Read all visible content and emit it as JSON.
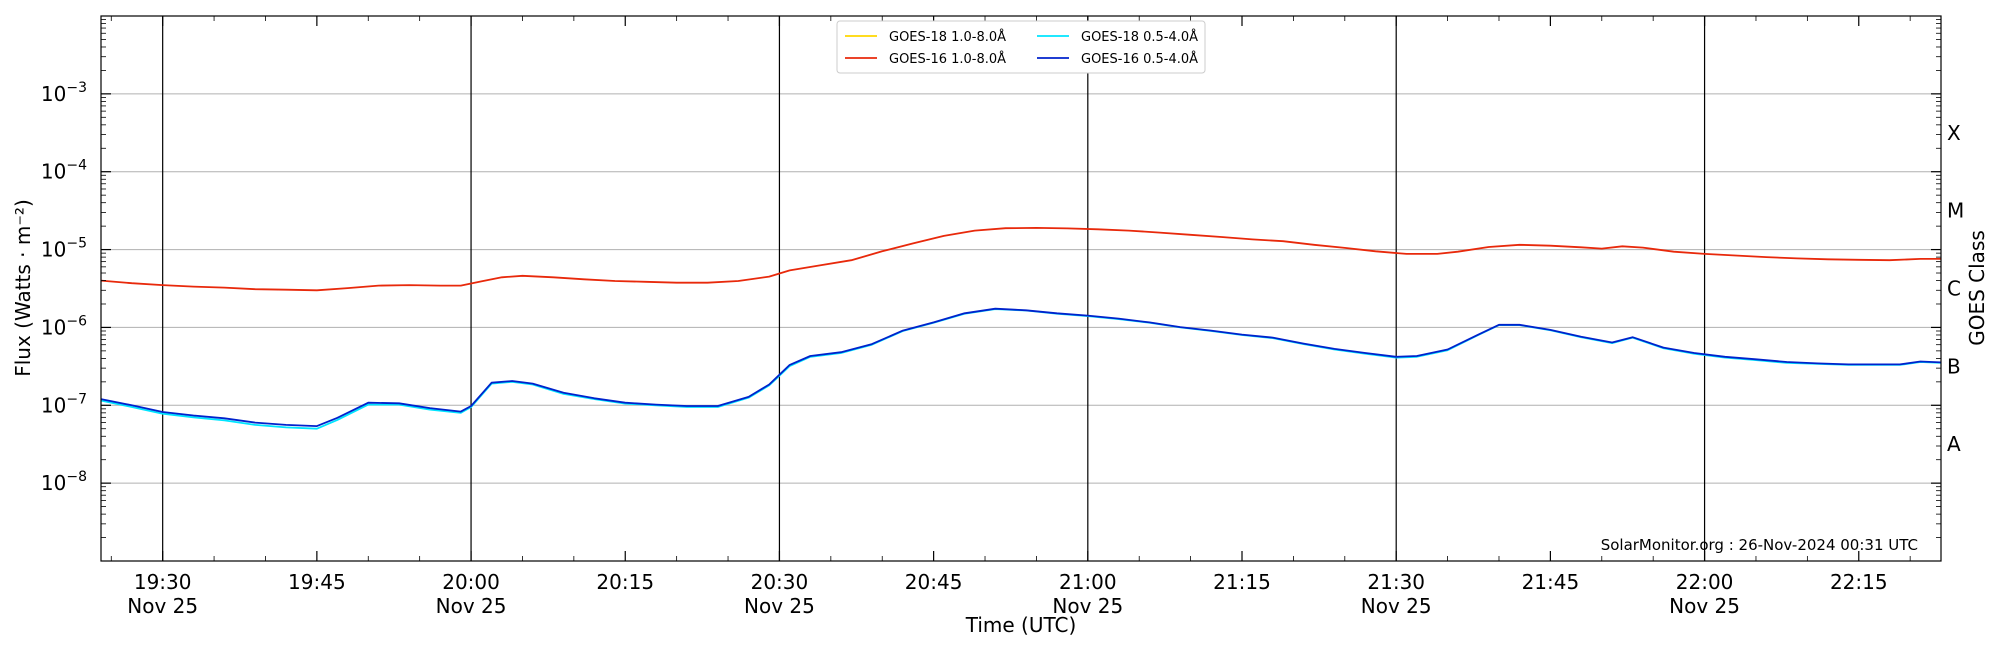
{
  "chart_data": {
    "type": "line",
    "title": "",
    "xlabel": "Time (UTC)",
    "ylabel": "Flux (Watts · m⁻²)",
    "y2label": "GOES Class",
    "yscale": "log",
    "ylim": [
      1e-09,
      0.01
    ],
    "xlim": [
      "2024-11-25T19:24",
      "2024-11-25T22:23"
    ],
    "grid": "horizontal",
    "legend_position": "top-center",
    "watermark": "SolarMonitor.org : 26-Nov-2024 00:31 UTC",
    "vlines": [
      "19:30",
      "20:00",
      "20:30",
      "21:00",
      "21:30",
      "22:00"
    ],
    "x_ticks": [
      {
        "t": "19:30",
        "line1": "19:30",
        "line2": "Nov 25"
      },
      {
        "t": "19:45",
        "line1": "19:45",
        "line2": ""
      },
      {
        "t": "20:00",
        "line1": "20:00",
        "line2": "Nov 25"
      },
      {
        "t": "20:15",
        "line1": "20:15",
        "line2": ""
      },
      {
        "t": "20:30",
        "line1": "20:30",
        "line2": "Nov 25"
      },
      {
        "t": "20:45",
        "line1": "20:45",
        "line2": ""
      },
      {
        "t": "21:00",
        "line1": "21:00",
        "line2": "Nov 25"
      },
      {
        "t": "21:15",
        "line1": "21:15",
        "line2": ""
      },
      {
        "t": "21:30",
        "line1": "21:30",
        "line2": "Nov 25"
      },
      {
        "t": "21:45",
        "line1": "21:45",
        "line2": ""
      },
      {
        "t": "22:00",
        "line1": "22:00",
        "line2": "Nov 25"
      },
      {
        "t": "22:15",
        "line1": "22:15",
        "line2": ""
      }
    ],
    "y_ticks": [
      {
        "value": 1e-08,
        "base": "10",
        "exp": "−8"
      },
      {
        "value": 1e-07,
        "base": "10",
        "exp": "−7"
      },
      {
        "value": 1e-06,
        "base": "10",
        "exp": "−6"
      },
      {
        "value": 1e-05,
        "base": "10",
        "exp": "−5"
      },
      {
        "value": 0.0001,
        "base": "10",
        "exp": "−4"
      },
      {
        "value": 0.001,
        "base": "10",
        "exp": "−3"
      }
    ],
    "goes_classes": [
      {
        "label": "A",
        "value": 3.16e-08
      },
      {
        "label": "B",
        "value": 3.16e-07
      },
      {
        "label": "C",
        "value": 3.16e-06
      },
      {
        "label": "M",
        "value": 3.16e-05
      },
      {
        "label": "X",
        "value": 0.000316
      }
    ],
    "series": [
      {
        "name": "GOES-18 1.0-8.0Å",
        "color": "#ffd700",
        "points": []
      },
      {
        "name": "GOES-18 0.5-4.0Å",
        "color": "#00e5ff",
        "points": [
          [
            "19:24",
            1.15e-07
          ],
          [
            "19:27",
            9.5e-08
          ],
          [
            "19:30",
            7.8e-08
          ],
          [
            "19:33",
            7e-08
          ],
          [
            "19:36",
            6.4e-08
          ],
          [
            "19:39",
            5.6e-08
          ],
          [
            "19:42",
            5.2e-08
          ],
          [
            "19:45",
            5e-08
          ],
          [
            "19:47",
            6.5e-08
          ],
          [
            "19:50",
            1.02e-07
          ],
          [
            "19:53",
            1.02e-07
          ],
          [
            "19:56",
            8.8e-08
          ],
          [
            "19:59",
            8e-08
          ],
          [
            "20:00",
            9.5e-08
          ],
          [
            "20:02",
            1.9e-07
          ],
          [
            "20:04",
            2e-07
          ],
          [
            "20:06",
            1.85e-07
          ],
          [
            "20:09",
            1.4e-07
          ],
          [
            "20:12",
            1.2e-07
          ],
          [
            "20:15",
            1.05e-07
          ],
          [
            "20:18",
            1e-07
          ],
          [
            "20:21",
            9.5e-08
          ],
          [
            "20:24",
            9.5e-08
          ],
          [
            "20:27",
            1.25e-07
          ],
          [
            "20:29",
            1.8e-07
          ],
          [
            "20:31",
            3.2e-07
          ],
          [
            "20:33",
            4.2e-07
          ],
          [
            "20:36",
            4.7e-07
          ],
          [
            "20:39",
            6e-07
          ],
          [
            "20:42",
            9e-07
          ],
          [
            "20:45",
            1.15e-06
          ],
          [
            "20:48",
            1.5e-06
          ],
          [
            "20:51",
            1.72e-06
          ],
          [
            "20:54",
            1.65e-06
          ],
          [
            "20:57",
            1.5e-06
          ],
          [
            "21:00",
            1.4e-06
          ],
          [
            "21:03",
            1.28e-06
          ],
          [
            "21:06",
            1.15e-06
          ],
          [
            "21:09",
            1e-06
          ],
          [
            "21:12",
            9e-07
          ],
          [
            "21:15",
            8e-07
          ],
          [
            "21:18",
            7.3e-07
          ],
          [
            "21:21",
            6.1e-07
          ],
          [
            "21:24",
            5.2e-07
          ],
          [
            "21:27",
            4.6e-07
          ],
          [
            "21:30",
            4.1e-07
          ],
          [
            "21:32",
            4.2e-07
          ],
          [
            "21:35",
            5.1e-07
          ],
          [
            "21:38",
            8e-07
          ],
          [
            "21:40",
            1.07e-06
          ],
          [
            "21:42",
            1.07e-06
          ],
          [
            "21:45",
            9.2e-07
          ],
          [
            "21:48",
            7.5e-07
          ],
          [
            "21:51",
            6.3e-07
          ],
          [
            "21:53",
            7.4e-07
          ],
          [
            "21:56",
            5.4e-07
          ],
          [
            "21:59",
            4.6e-07
          ],
          [
            "22:02",
            4.1e-07
          ],
          [
            "22:05",
            3.8e-07
          ],
          [
            "22:08",
            3.5e-07
          ],
          [
            "22:11",
            3.4e-07
          ],
          [
            "22:14",
            3.3e-07
          ],
          [
            "22:17",
            3.3e-07
          ],
          [
            "22:19",
            3.3e-07
          ],
          [
            "22:21",
            3.6e-07
          ],
          [
            "22:23",
            3.5e-07
          ]
        ]
      },
      {
        "name": "GOES-16 1.0-8.0Å",
        "color": "#e8290b",
        "points": [
          [
            "19:24",
            4e-06
          ],
          [
            "19:27",
            3.7e-06
          ],
          [
            "19:30",
            3.5e-06
          ],
          [
            "19:33",
            3.35e-06
          ],
          [
            "19:36",
            3.25e-06
          ],
          [
            "19:39",
            3.1e-06
          ],
          [
            "19:42",
            3.05e-06
          ],
          [
            "19:45",
            3e-06
          ],
          [
            "19:48",
            3.2e-06
          ],
          [
            "19:51",
            3.45e-06
          ],
          [
            "19:54",
            3.5e-06
          ],
          [
            "19:57",
            3.45e-06
          ],
          [
            "19:59",
            3.45e-06
          ],
          [
            "20:01",
            3.9e-06
          ],
          [
            "20:03",
            4.4e-06
          ],
          [
            "20:05",
            4.6e-06
          ],
          [
            "20:08",
            4.4e-06
          ],
          [
            "20:11",
            4.15e-06
          ],
          [
            "20:14",
            3.95e-06
          ],
          [
            "20:17",
            3.85e-06
          ],
          [
            "20:20",
            3.75e-06
          ],
          [
            "20:23",
            3.75e-06
          ],
          [
            "20:26",
            3.95e-06
          ],
          [
            "20:29",
            4.5e-06
          ],
          [
            "20:31",
            5.4e-06
          ],
          [
            "20:34",
            6.3e-06
          ],
          [
            "20:37",
            7.3e-06
          ],
          [
            "20:40",
            9.5e-06
          ],
          [
            "20:43",
            1.2e-05
          ],
          [
            "20:46",
            1.5e-05
          ],
          [
            "20:49",
            1.75e-05
          ],
          [
            "20:52",
            1.88e-05
          ],
          [
            "20:55",
            1.9e-05
          ],
          [
            "20:58",
            1.87e-05
          ],
          [
            "21:01",
            1.82e-05
          ],
          [
            "21:04",
            1.75e-05
          ],
          [
            "21:07",
            1.65e-05
          ],
          [
            "21:10",
            1.55e-05
          ],
          [
            "21:13",
            1.45e-05
          ],
          [
            "21:16",
            1.35e-05
          ],
          [
            "21:19",
            1.28e-05
          ],
          [
            "21:22",
            1.15e-05
          ],
          [
            "21:25",
            1.05e-05
          ],
          [
            "21:28",
            9.5e-06
          ],
          [
            "21:31",
            8.8e-06
          ],
          [
            "21:34",
            8.8e-06
          ],
          [
            "21:36",
            9.4e-06
          ],
          [
            "21:39",
            1.08e-05
          ],
          [
            "21:42",
            1.15e-05
          ],
          [
            "21:45",
            1.12e-05
          ],
          [
            "21:48",
            1.07e-05
          ],
          [
            "21:50",
            1.03e-05
          ],
          [
            "21:52",
            1.1e-05
          ],
          [
            "21:54",
            1.06e-05
          ],
          [
            "21:57",
            9.4e-06
          ],
          [
            "22:00",
            8.8e-06
          ],
          [
            "22:03",
            8.4e-06
          ],
          [
            "22:06",
            8e-06
          ],
          [
            "22:09",
            7.7e-06
          ],
          [
            "22:12",
            7.5e-06
          ],
          [
            "22:15",
            7.4e-06
          ],
          [
            "22:18",
            7.3e-06
          ],
          [
            "22:21",
            7.6e-06
          ],
          [
            "22:23",
            7.6e-06
          ]
        ]
      },
      {
        "name": "GOES-16 0.5-4.0Å",
        "color": "#0022cc",
        "points": [
          [
            "19:24",
            1.2e-07
          ],
          [
            "19:27",
            1e-07
          ],
          [
            "19:30",
            8.2e-08
          ],
          [
            "19:33",
            7.4e-08
          ],
          [
            "19:36",
            6.8e-08
          ],
          [
            "19:39",
            6e-08
          ],
          [
            "19:42",
            5.6e-08
          ],
          [
            "19:45",
            5.4e-08
          ],
          [
            "19:47",
            6.9e-08
          ],
          [
            "19:50",
            1.08e-07
          ],
          [
            "19:53",
            1.06e-07
          ],
          [
            "19:56",
            9.2e-08
          ],
          [
            "19:59",
            8.3e-08
          ],
          [
            "20:00",
            9.8e-08
          ],
          [
            "20:02",
            1.95e-07
          ],
          [
            "20:04",
            2.05e-07
          ],
          [
            "20:06",
            1.9e-07
          ],
          [
            "20:09",
            1.45e-07
          ],
          [
            "20:12",
            1.23e-07
          ],
          [
            "20:15",
            1.08e-07
          ],
          [
            "20:18",
            1.02e-07
          ],
          [
            "20:21",
            9.8e-08
          ],
          [
            "20:24",
            9.8e-08
          ],
          [
            "20:27",
            1.28e-07
          ],
          [
            "20:29",
            1.85e-07
          ],
          [
            "20:31",
            3.3e-07
          ],
          [
            "20:33",
            4.3e-07
          ],
          [
            "20:36",
            4.8e-07
          ],
          [
            "20:39",
            6.1e-07
          ],
          [
            "20:42",
            9.1e-07
          ],
          [
            "20:45",
            1.16e-06
          ],
          [
            "20:48",
            1.52e-06
          ],
          [
            "20:51",
            1.74e-06
          ],
          [
            "20:54",
            1.66e-06
          ],
          [
            "20:57",
            1.52e-06
          ],
          [
            "21:00",
            1.42e-06
          ],
          [
            "21:03",
            1.3e-06
          ],
          [
            "21:06",
            1.16e-06
          ],
          [
            "21:09",
            1.01e-06
          ],
          [
            "21:12",
            9.1e-07
          ],
          [
            "21:15",
            8.1e-07
          ],
          [
            "21:18",
            7.4e-07
          ],
          [
            "21:21",
            6.2e-07
          ],
          [
            "21:24",
            5.3e-07
          ],
          [
            "21:27",
            4.7e-07
          ],
          [
            "21:30",
            4.2e-07
          ],
          [
            "21:32",
            4.3e-07
          ],
          [
            "21:35",
            5.2e-07
          ],
          [
            "21:38",
            8.1e-07
          ],
          [
            "21:40",
            1.08e-06
          ],
          [
            "21:42",
            1.08e-06
          ],
          [
            "21:45",
            9.3e-07
          ],
          [
            "21:48",
            7.6e-07
          ],
          [
            "21:51",
            6.4e-07
          ],
          [
            "21:53",
            7.5e-07
          ],
          [
            "21:56",
            5.5e-07
          ],
          [
            "21:59",
            4.7e-07
          ],
          [
            "22:02",
            4.2e-07
          ],
          [
            "22:05",
            3.9e-07
          ],
          [
            "22:08",
            3.6e-07
          ],
          [
            "22:11",
            3.45e-07
          ],
          [
            "22:14",
            3.35e-07
          ],
          [
            "22:17",
            3.35e-07
          ],
          [
            "22:19",
            3.35e-07
          ],
          [
            "22:21",
            3.65e-07
          ],
          [
            "22:23",
            3.55e-07
          ]
        ]
      }
    ]
  }
}
